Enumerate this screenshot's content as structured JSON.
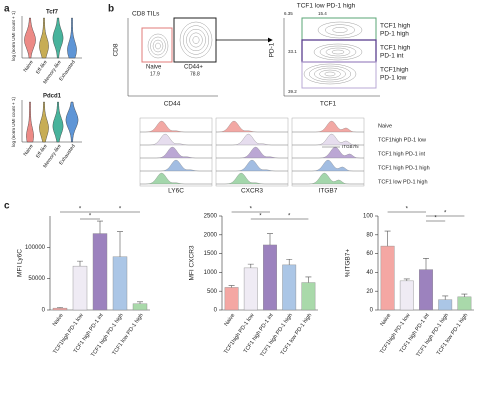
{
  "panel_labels": {
    "a": "a",
    "b": "b",
    "c": "c"
  },
  "panel_a": {
    "ylabel": "log (norm UMI count + 1)",
    "genes": [
      "Tcf7",
      "Pdcd1"
    ],
    "groups": [
      "Naive",
      "Eff-like",
      "Memory-like",
      "Exhausted"
    ]
  },
  "panel_b": {
    "plot1": {
      "title": "CD8 TILs",
      "ylabel": "CD8",
      "xlabel": "CD44",
      "gates": [
        {
          "name": "Naive",
          "pct": 17.9
        },
        {
          "name": "CD44+",
          "pct": 78.8
        }
      ]
    },
    "plot2": {
      "title": "TCF1 low PD-1 high",
      "ylabel": "PD-1",
      "xlabel": "TCF1",
      "percents": [
        6.35,
        15.4,
        33.1,
        39.2
      ]
    },
    "gate_labels": [
      [
        "TCF1 high",
        "PD-1 high"
      ],
      [
        "TCF1 high",
        "PD-1 int"
      ],
      [
        "TCF1high",
        "PD-1 low"
      ]
    ],
    "histograms": {
      "markers": [
        "LY6C",
        "CXCR3",
        "ITGB7"
      ],
      "populations": [
        "Naive",
        "TCF1high PD-1 low",
        "TCF1 high PD-1 int",
        "TCF1 high PD-1 high",
        "TCF1 low PD-1 high"
      ],
      "annotation": "ITGB7hi"
    }
  },
  "chart_data": [
    {
      "type": "bar",
      "ylabel": "MFI Ly6C",
      "categories": [
        "Naive",
        "TCF1high PD-1 low",
        "TCF1 high PD-1 int",
        "TCF1 high PD-1 high",
        "TCF1 low PD-1 high"
      ],
      "values": [
        3000,
        70000,
        122000,
        85000,
        10000
      ],
      "errors": [
        1000,
        8000,
        20000,
        40000,
        3000
      ],
      "colors": [
        "#f4a7a3",
        "#efebf4",
        "#9c82be",
        "#abc6e6",
        "#a9d9aa"
      ],
      "ylim": [
        0,
        150000
      ],
      "yticks": [
        0,
        50000,
        100000
      ],
      "annotations": [
        "*",
        "*",
        "*"
      ]
    },
    {
      "type": "bar",
      "ylabel": "MFI CXCR3",
      "categories": [
        "Naive",
        "TCF1high PD-1 low",
        "TCF1 high PD-1 int",
        "TCF1 high PD-1 high",
        "TCF1 low PD-1 high"
      ],
      "values": [
        600,
        1120,
        1730,
        1200,
        730
      ],
      "errors": [
        50,
        100,
        300,
        150,
        150
      ],
      "colors": [
        "#f4a7a3",
        "#efebf4",
        "#9c82be",
        "#abc6e6",
        "#a9d9aa"
      ],
      "ylim": [
        0,
        2500
      ],
      "yticks": [
        0,
        500,
        1000,
        1500,
        2000,
        2500
      ],
      "annotations": [
        "*",
        "*",
        "*"
      ]
    },
    {
      "type": "bar",
      "ylabel": "%ITGB7+",
      "categories": [
        "Naive",
        "TCF1high PD-1 low",
        "TCF1 high PD-1 int",
        "TCF1 high PD-1 high",
        "TCF1 low PD-1 high"
      ],
      "values": [
        68,
        31,
        43,
        11,
        14
      ],
      "errors": [
        16,
        2,
        12,
        4,
        3
      ],
      "colors": [
        "#f4a7a3",
        "#efebf4",
        "#9c82be",
        "#abc6e6",
        "#a9d9aa"
      ],
      "ylim": [
        0,
        100
      ],
      "yticks": [
        0,
        20,
        40,
        60,
        80,
        100
      ],
      "annotations": [
        "*",
        "*",
        "*"
      ]
    }
  ]
}
